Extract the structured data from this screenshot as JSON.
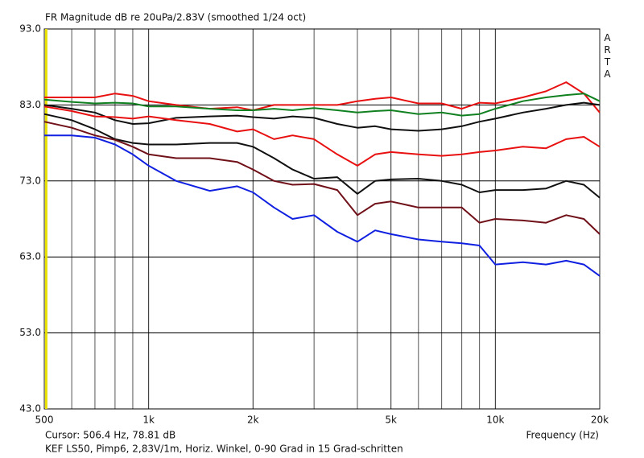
{
  "chart_data": {
    "type": "line",
    "title": "FR Magnitude dB re 20uPa/2.83V (smoothed 1/24 oct)",
    "brand": "ARTA",
    "xlabel": "Frequency (Hz)",
    "cursor": {
      "x": 506.4,
      "label": "Cursor: 506.4 Hz, 78.81 dB",
      "color": "#e8e000"
    },
    "caption": "KEF LS50, Pimp6, 2,83V/1m, Horiz. Winkel, 0-90 Grad in 15 Grad-schritten",
    "log_x": true,
    "grid": true,
    "xlim": [
      500,
      20000
    ],
    "xticks": [
      500,
      {
        "value": 1000,
        "label": "1k"
      },
      {
        "value": 2000,
        "label": "2k"
      },
      {
        "value": 5000,
        "label": "5k"
      },
      {
        "value": 10000,
        "label": "10k"
      },
      {
        "value": 20000,
        "label": "20k"
      }
    ],
    "xminor": [
      600,
      700,
      800,
      900,
      3000,
      4000,
      6000,
      7000,
      8000,
      9000
    ],
    "ylim": [
      43,
      93
    ],
    "yticks": [
      {
        "value": 43,
        "label": "43.0"
      },
      {
        "value": 53,
        "label": "53.0"
      },
      {
        "value": 63,
        "label": "63.0"
      },
      {
        "value": 73,
        "label": "73.0"
      },
      {
        "value": 83,
        "label": "83.0"
      },
      {
        "value": 93,
        "label": "93.0"
      }
    ],
    "x": [
      500,
      600,
      700,
      800,
      900,
      1000,
      1200,
      1500,
      1800,
      2000,
      2300,
      2600,
      3000,
      3500,
      4000,
      4500,
      5000,
      6000,
      7000,
      8000,
      9000,
      10000,
      12000,
      14000,
      16000,
      18000,
      20000
    ],
    "series": [
      {
        "color": "#e81010",
        "values": [
          84,
          84,
          84,
          84.5,
          84.2,
          83.5,
          83,
          82.5,
          82.7,
          82.3,
          83,
          83,
          83,
          83,
          83.5,
          83.8,
          84,
          83.2,
          83.2,
          82.5,
          83.3,
          83.2,
          84,
          84.8,
          86,
          84.5,
          82
        ]
      },
      {
        "color": "#108020",
        "values": [
          83.7,
          83.4,
          83.2,
          83.3,
          83.2,
          82.8,
          82.8,
          82.5,
          82.3,
          82.3,
          82.5,
          82.3,
          82.6,
          82.3,
          82,
          82.2,
          82.3,
          81.8,
          82,
          81.6,
          81.8,
          82.5,
          83.5,
          84,
          84.3,
          84.5,
          83.5
        ]
      },
      {
        "color": "#101010",
        "values": [
          83,
          82.5,
          82,
          81,
          80.5,
          80.6,
          81.3,
          81.5,
          81.6,
          81.4,
          81.2,
          81.5,
          81.3,
          80.5,
          80,
          80.2,
          79.8,
          79.6,
          79.8,
          80.2,
          80.8,
          81.2,
          82,
          82.5,
          83,
          83.3,
          83
        ]
      },
      {
        "color": "#e81010",
        "values": [
          82.8,
          82.2,
          81.5,
          81.4,
          81.2,
          81.5,
          81,
          80.5,
          79.5,
          79.8,
          78.5,
          79,
          78.5,
          76.5,
          75,
          76.5,
          76.8,
          76.5,
          76.3,
          76.5,
          76.8,
          77,
          77.5,
          77.3,
          78.5,
          78.8,
          77.5
        ]
      },
      {
        "color": "#101010",
        "values": [
          81.8,
          81,
          79.8,
          78.5,
          78,
          77.8,
          77.8,
          78,
          78,
          77.5,
          76,
          74.5,
          73.3,
          73.5,
          71.3,
          73,
          73.2,
          73.3,
          73,
          72.5,
          71.5,
          71.8,
          71.8,
          72,
          73,
          72.5,
          70.8
        ]
      },
      {
        "color": "#701018",
        "values": [
          80.8,
          80,
          79,
          78.4,
          77.5,
          76.5,
          76,
          76,
          75.5,
          74.5,
          73,
          72.5,
          72.6,
          71.8,
          68.5,
          70,
          70.3,
          69.5,
          69.5,
          69.5,
          67.5,
          68,
          67.8,
          67.5,
          68.5,
          68,
          66
        ]
      },
      {
        "color": "#1020e0",
        "values": [
          79,
          79,
          78.7,
          77.8,
          76.5,
          75,
          73,
          71.7,
          72.3,
          71.5,
          69.5,
          68,
          68.5,
          66.3,
          65,
          66.5,
          66,
          65.3,
          65,
          64.8,
          64.5,
          62,
          62.3,
          62,
          62.5,
          62,
          60.5
        ]
      }
    ]
  }
}
